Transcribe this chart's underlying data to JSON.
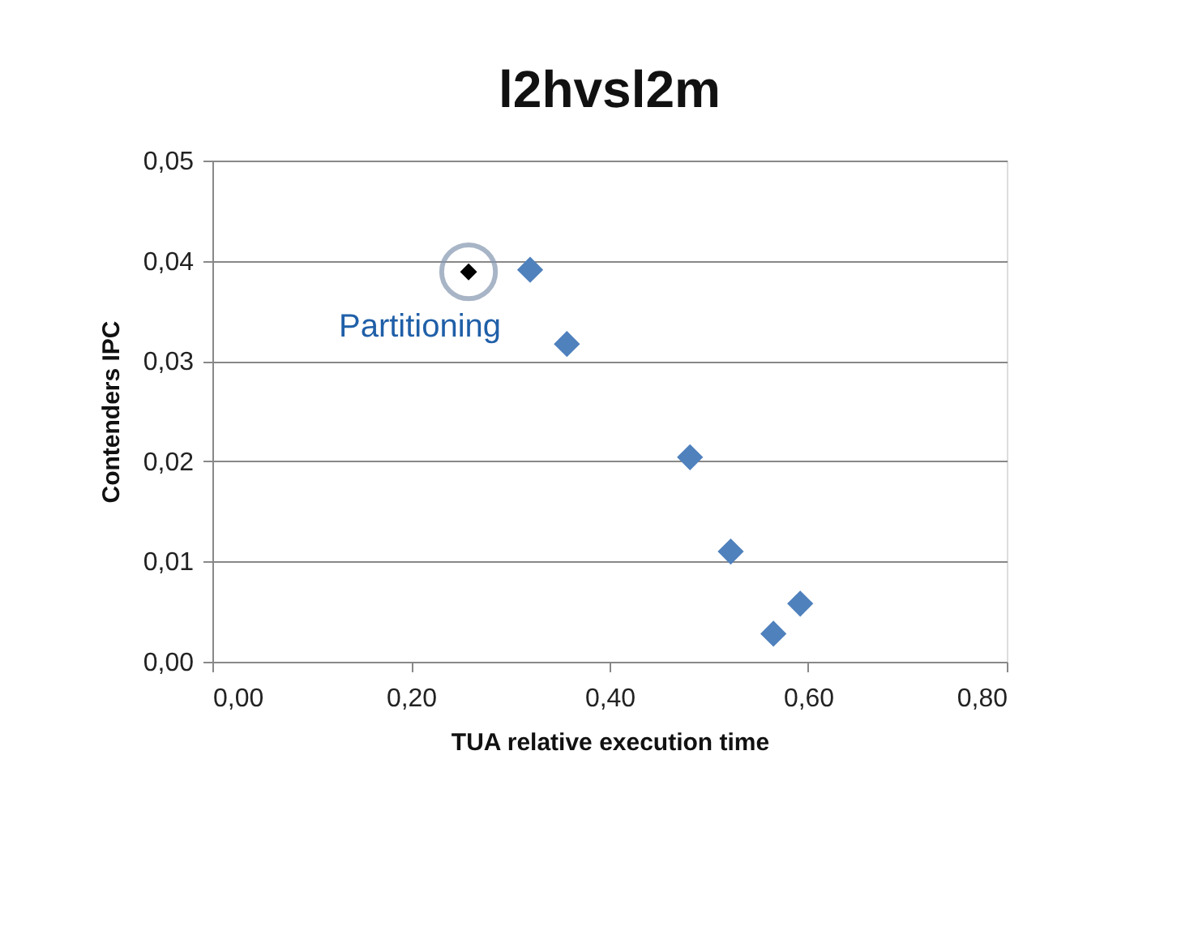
{
  "chart_data": {
    "type": "scatter",
    "title": "l2hvsl2m",
    "xlabel": "TUA relative execution time",
    "ylabel": "Contenders IPC",
    "series": [
      {
        "color": "#4f81bd",
        "x": [
          0.32,
          0.357,
          0.481,
          0.522,
          0.592,
          0.565
        ],
        "values": [
          0.0391,
          0.0317,
          0.0204,
          0.011,
          0.0058,
          0.0028
        ]
      },
      {
        "color": "#000000",
        "x": [
          0.258
        ],
        "values": [
          0.0389
        ]
      }
    ],
    "annotations": [
      {
        "text": "Partitioning",
        "x": 0.258,
        "y": 0.0389
      }
    ],
    "xlim": [
      0,
      0.8
    ],
    "ylim": [
      0,
      0.05
    ],
    "xticks": [
      {
        "value": 0,
        "label": "0,00"
      },
      {
        "value": 0.2,
        "label": "0,20"
      },
      {
        "value": 0.4,
        "label": "0,40"
      },
      {
        "value": 0.6,
        "label": "0,60"
      },
      {
        "value": 0.8,
        "label": "0,80"
      }
    ],
    "yticks": [
      {
        "value": 0,
        "label": "0,00"
      },
      {
        "value": 0.01,
        "label": "0,01"
      },
      {
        "value": 0.02,
        "label": "0,02"
      },
      {
        "value": 0.03,
        "label": "0,03"
      },
      {
        "value": 0.04,
        "label": "0,04"
      },
      {
        "value": 0.05,
        "label": "0,05"
      }
    ],
    "grid": "y",
    "marker": "diamond"
  }
}
